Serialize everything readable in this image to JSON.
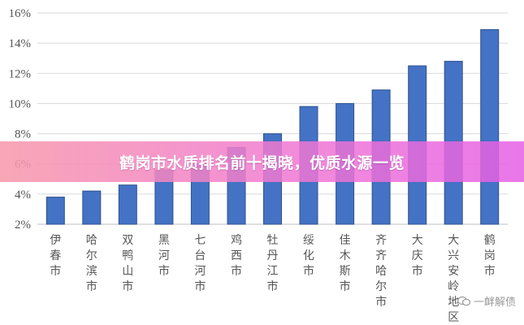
{
  "chart_data": {
    "type": "bar",
    "categories": [
      "伊春市",
      "哈尔滨市",
      "双鸭山市",
      "黑河市",
      "七台河市",
      "鸡西市",
      "牡丹江市",
      "绥化市",
      "佳木斯市",
      "齐齐哈尔市",
      "大庆市",
      "大兴安岭地区",
      "鹤岗市"
    ],
    "values": [
      3.8,
      4.2,
      4.6,
      5.6,
      6.0,
      7.1,
      8.0,
      9.8,
      10.0,
      10.9,
      12.5,
      12.8,
      14.9
    ],
    "ylim": [
      2,
      16
    ],
    "yticks": [
      2,
      4,
      6,
      8,
      10,
      12,
      14,
      16
    ],
    "ytick_labels": [
      "2%",
      "4%",
      "6%",
      "8%",
      "10%",
      "12%",
      "14%",
      "16%"
    ],
    "grid": true,
    "bar_color": "#4472C4"
  },
  "banner": {
    "text": "鹤岗市水质排名前十揭晓，优质水源一览"
  },
  "watermark": {
    "text": "一衅解债"
  }
}
